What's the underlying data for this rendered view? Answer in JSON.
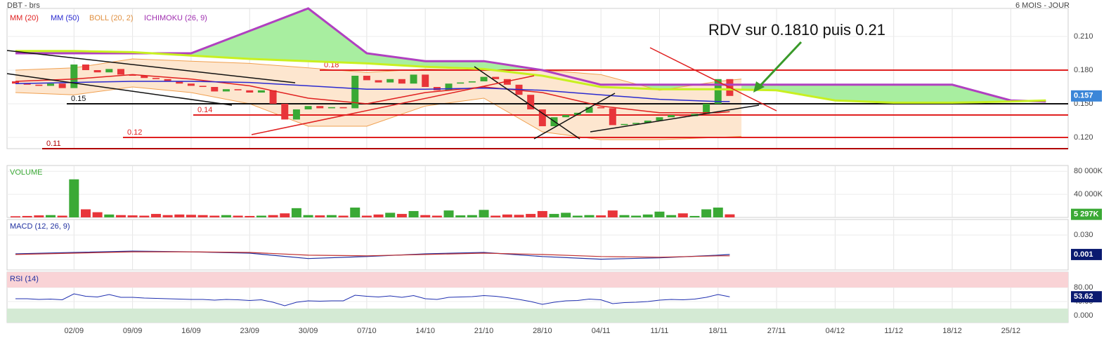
{
  "chart_data": {
    "type": "candlestick",
    "title": "DBT - brs",
    "period": "6 MOIS - JOUR",
    "annotation": "RDV sur 0.1810 puis 0.21",
    "xlim": [
      -0.72,
      89.9
    ],
    "xticks": [
      {
        "value": 5,
        "label": "02/09"
      },
      {
        "value": 10,
        "label": "09/09"
      },
      {
        "value": 15,
        "label": "16/09"
      },
      {
        "value": 20,
        "label": "23/09"
      },
      {
        "value": 25,
        "label": "30/09"
      },
      {
        "value": 30,
        "label": "07/10"
      },
      {
        "value": 35,
        "label": "14/10"
      },
      {
        "value": 40,
        "label": "21/10"
      },
      {
        "value": 45,
        "label": "28/10"
      },
      {
        "value": 50,
        "label": "04/11"
      },
      {
        "value": 55,
        "label": "11/11"
      },
      {
        "value": 60,
        "label": "18/11"
      },
      {
        "value": 65,
        "label": "27/11"
      },
      {
        "value": 70,
        "label": "04/12"
      },
      {
        "value": 75,
        "label": "11/12"
      },
      {
        "value": 80,
        "label": "18/12"
      },
      {
        "value": 85,
        "label": "25/12"
      }
    ],
    "price": {
      "ylim": [
        0.11,
        0.235
      ],
      "yticks": [
        {
          "value": 0.21,
          "label": "0.210"
        },
        {
          "value": 0.18,
          "label": "0.180"
        },
        {
          "value": 0.15,
          "label": "0.150"
        },
        {
          "value": 0.12,
          "label": "0.120"
        }
      ],
      "up_color": "#3aa935",
      "down_color": "#e8353a",
      "last_color": "#3b86d8",
      "open": [
        0.17,
        0.168,
        0.167,
        0.166,
        0.168,
        0.164,
        0.185,
        0.18,
        0.178,
        0.181,
        0.176,
        0.175,
        0.173,
        0.172,
        0.17,
        0.168,
        0.166,
        0.165,
        0.161,
        0.163,
        0.162,
        0.16,
        0.162,
        0.15,
        0.136,
        0.145,
        0.148,
        0.146,
        0.147,
        0.146,
        0.175,
        0.171,
        0.169,
        0.172,
        0.168,
        0.176,
        0.165,
        0.162,
        0.168,
        0.169,
        0.17,
        0.174,
        0.172,
        0.167,
        0.158,
        0.145,
        0.13,
        0.138,
        0.14,
        0.142,
        0.147,
        0.146,
        0.131,
        0.132,
        0.133,
        0.135,
        0.138,
        0.14,
        0.139,
        0.141,
        0.15,
        0.172
      ],
      "close": [
        0.168,
        0.167,
        0.166,
        0.168,
        0.164,
        0.185,
        0.18,
        0.178,
        0.181,
        0.176,
        0.175,
        0.173,
        0.172,
        0.17,
        0.168,
        0.166,
        0.165,
        0.161,
        0.163,
        0.162,
        0.16,
        0.162,
        0.15,
        0.136,
        0.145,
        0.148,
        0.146,
        0.147,
        0.146,
        0.175,
        0.171,
        0.169,
        0.172,
        0.168,
        0.176,
        0.165,
        0.162,
        0.168,
        0.169,
        0.17,
        0.174,
        0.172,
        0.167,
        0.158,
        0.145,
        0.13,
        0.138,
        0.14,
        0.142,
        0.147,
        0.146,
        0.131,
        0.132,
        0.133,
        0.135,
        0.138,
        0.14,
        0.139,
        0.141,
        0.15,
        0.172,
        0.157
      ]
    },
    "overlays": [
      {
        "name": "MM (20)",
        "color": "#e02020",
        "x": [
          0,
          5,
          10,
          15,
          20,
          25,
          30,
          35,
          40,
          45,
          50,
          55,
          60,
          61
        ],
        "values": [
          0.17,
          0.172,
          0.176,
          0.172,
          0.166,
          0.155,
          0.15,
          0.16,
          0.165,
          0.16,
          0.148,
          0.142,
          0.142,
          0.143
        ]
      },
      {
        "name": "MM (50)",
        "color": "#2a2ad0",
        "x": [
          0,
          5,
          10,
          15,
          20,
          25,
          30,
          35,
          40,
          45,
          50,
          55,
          60,
          61
        ],
        "values": [
          0.168,
          0.169,
          0.17,
          0.17,
          0.169,
          0.166,
          0.163,
          0.163,
          0.164,
          0.162,
          0.158,
          0.154,
          0.152,
          0.152
        ]
      }
    ],
    "boll": {
      "name": "BOLL (20, 2)",
      "color": "#f0a050",
      "fill": "#fde6cf",
      "x": [
        0,
        5,
        10,
        15,
        20,
        25,
        30,
        35,
        40,
        45,
        50,
        55,
        60,
        62
      ],
      "upper": [
        0.18,
        0.182,
        0.19,
        0.188,
        0.186,
        0.182,
        0.178,
        0.181,
        0.18,
        0.18,
        0.176,
        0.162,
        0.17,
        0.172
      ],
      "lower": [
        0.16,
        0.158,
        0.165,
        0.16,
        0.15,
        0.13,
        0.13,
        0.148,
        0.155,
        0.125,
        0.118,
        0.118,
        0.12,
        0.121
      ]
    },
    "ichimoku": {
      "name": "ICHIMOKU (26, 9)",
      "color": "#b040c0",
      "span_b_color": "#c8f020",
      "fill": "#a8eea0",
      "x": [
        0,
        5,
        10,
        15,
        20,
        25,
        30,
        35,
        40,
        45,
        50,
        55,
        60,
        65,
        70,
        75,
        80,
        85,
        88
      ],
      "span_a": [
        0.195,
        0.195,
        0.195,
        0.195,
        0.215,
        0.235,
        0.195,
        0.188,
        0.188,
        0.18,
        0.167,
        0.167,
        0.167,
        0.167,
        0.167,
        0.167,
        0.167,
        0.153,
        0.152
      ],
      "span_b": [
        0.197,
        0.197,
        0.196,
        0.193,
        0.19,
        0.188,
        0.186,
        0.183,
        0.181,
        0.175,
        0.165,
        0.163,
        0.163,
        0.162,
        0.153,
        0.151,
        0.151,
        0.152,
        0.153
      ]
    },
    "levels": [
      0.18,
      0.15,
      0.14,
      0.12,
      0.11
    ],
    "level_colors": [
      "#e02020",
      "#111111",
      "#e02020",
      "#e02020",
      "#b00000"
    ],
    "volume": {
      "name": "VOLUME",
      "ylim": [
        0,
        90000
      ],
      "yticks": [
        {
          "value": 80000,
          "label": "80 000K"
        },
        {
          "value": 40000,
          "label": "40 000K"
        }
      ],
      "last_label": "5 297K",
      "values": [
        2000,
        2500,
        3500,
        4000,
        3000,
        66000,
        14000,
        9000,
        5000,
        4000,
        3500,
        3000,
        6000,
        4000,
        5000,
        4500,
        4000,
        3000,
        4000,
        3000,
        2500,
        3000,
        4000,
        7000,
        16000,
        4000,
        3500,
        4000,
        3000,
        17000,
        3000,
        5000,
        8000,
        6000,
        11000,
        4000,
        3000,
        12000,
        3500,
        4000,
        13000,
        3000,
        5000,
        4500,
        6000,
        11000,
        6000,
        8000,
        3000,
        4000,
        3500,
        12000,
        4000,
        3000,
        5000,
        10000,
        4000,
        7000,
        2500,
        14000,
        17000,
        5297
      ]
    },
    "macd": {
      "name": "MACD (12, 26, 9)",
      "ylim": [
        -0.022,
        0.053
      ],
      "yticks": [
        {
          "value": 0.03,
          "label": "0.030"
        }
      ],
      "macd_color": "#2030a0",
      "signal_color": "#c03030",
      "last_color": "#0a1a70",
      "x": [
        0,
        5,
        10,
        15,
        20,
        25,
        30,
        35,
        40,
        45,
        50,
        55,
        60,
        61
      ],
      "macd_values": [
        0.002,
        0.004,
        0.006,
        0.005,
        0.003,
        -0.005,
        -0.002,
        0.002,
        0.004,
        -0.002,
        -0.006,
        -0.004,
        0.0,
        0.001
      ],
      "signal": [
        0.001,
        0.003,
        0.005,
        0.005,
        0.004,
        0.0,
        -0.001,
        0.001,
        0.003,
        0.001,
        -0.002,
        -0.003,
        -0.001,
        -0.001
      ]
    },
    "rsi": {
      "name": "RSI (14)",
      "ylim": [
        -20,
        124
      ],
      "yticks": [
        {
          "value": 80,
          "label": "80.00"
        },
        {
          "value": 40,
          "label": "40.00"
        },
        {
          "value": 0,
          "label": "0.000"
        }
      ],
      "overbought": 80,
      "oversold": 20,
      "color": "#1f2fb0",
      "last_color": "#0a1a70",
      "values": [
        48,
        48,
        46,
        47,
        45,
        62,
        55,
        53,
        60,
        52,
        52,
        50,
        49,
        48,
        47,
        46,
        46,
        44,
        46,
        45,
        43,
        45,
        38,
        28,
        38,
        42,
        41,
        42,
        42,
        58,
        55,
        53,
        56,
        52,
        57,
        48,
        46,
        52,
        53,
        54,
        57,
        55,
        51,
        46,
        40,
        32,
        38,
        42,
        43,
        47,
        45,
        34,
        37,
        38,
        40,
        44,
        46,
        45,
        47,
        52,
        60,
        53.62
      ]
    }
  }
}
